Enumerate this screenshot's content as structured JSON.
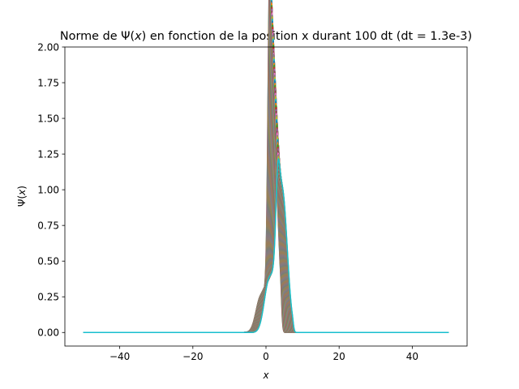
{
  "chart_data": {
    "type": "line",
    "title": "Norme de Ψ(x) en fonction de la position x durant 100 dt (dt = 1.3e-3)",
    "title_parts": {
      "before": "Norme de ",
      "psi": "Ψ",
      "paren_open": "(",
      "var_x": "x",
      "after": ") en fonction de la position x durant 100 dt (dt = 1.3e-3)"
    },
    "xlabel": "x",
    "ylabel_parts": {
      "psi": "Ψ",
      "paren_open": "(",
      "var_x": "x",
      "paren_close": ")"
    },
    "xlim": [
      -55,
      55
    ],
    "ylim": [
      -0.095,
      2.0
    ],
    "xticks": [
      -40,
      -20,
      0,
      20,
      40
    ],
    "xtick_labels": [
      "−40",
      "−20",
      "0",
      "20",
      "40"
    ],
    "yticks": [
      0.0,
      0.25,
      0.5,
      0.75,
      1.0,
      1.25,
      1.5,
      1.75,
      2.0
    ],
    "ytick_labels": [
      "0.00",
      "0.25",
      "0.50",
      "0.75",
      "1.00",
      "1.25",
      "1.50",
      "1.75",
      "2.00"
    ],
    "grid": false,
    "legend": "none",
    "x_range_of_curves": [
      -50,
      50
    ],
    "num_curves": 100,
    "series_colors": [
      "#1f77b4",
      "#ff7f0e",
      "#2ca02c",
      "#d62728",
      "#9467bd",
      "#8c564b",
      "#e377c2",
      "#7f7f7f",
      "#bcbd22",
      "#17becf"
    ],
    "series_sample": [
      {
        "x": [
          -50,
          -5,
          -3,
          -1,
          0,
          1,
          1.3,
          1.8,
          2.5,
          3.5,
          4.2,
          5,
          6,
          50
        ],
        "y": [
          0,
          0,
          0.02,
          0.15,
          0.4,
          1.25,
          1.9,
          1.55,
          1.35,
          1.25,
          0.9,
          0.2,
          0,
          0
        ]
      },
      {
        "x": [
          -50,
          -4,
          -2,
          0,
          1,
          2,
          3,
          4,
          4.8,
          5.5,
          7,
          50
        ],
        "y": [
          0,
          0,
          0.05,
          0.3,
          0.6,
          0.9,
          1.05,
          1.0,
          0.8,
          0.1,
          0,
          0
        ]
      },
      {
        "x": [
          -50,
          -4,
          -3,
          -1,
          0,
          1,
          2,
          3,
          4,
          5,
          5.5,
          6.5,
          50
        ],
        "y": [
          0,
          0,
          0.05,
          0.15,
          0.1,
          0.35,
          0.6,
          0.9,
          0.85,
          0.6,
          0.2,
          0,
          0
        ]
      }
    ]
  }
}
